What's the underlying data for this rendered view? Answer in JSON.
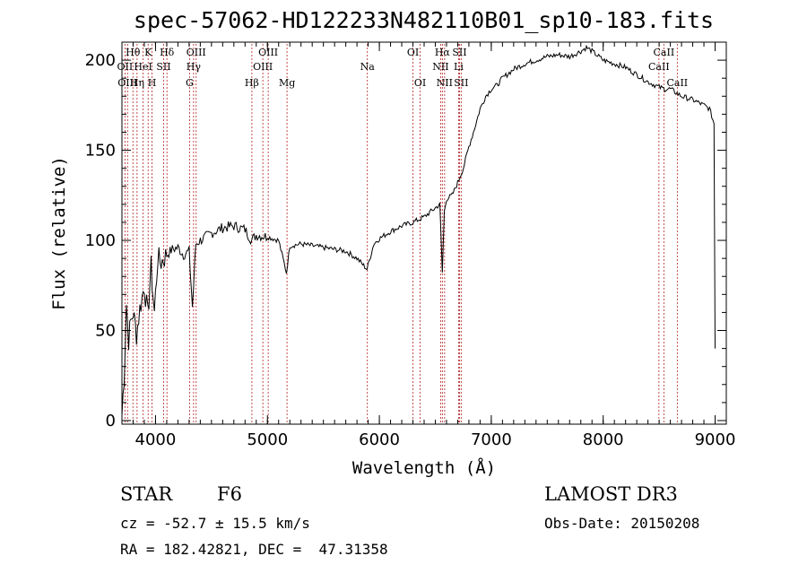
{
  "chart_data": {
    "type": "line",
    "title": "spec-57062-HD122233N482110B01_sp10-183.fits",
    "xlabel": "Wavelength (Å)",
    "ylabel": "Flux (relative)",
    "xlim": [
      3700,
      9100
    ],
    "ylim": [
      -2,
      210
    ],
    "xticks": [
      4000,
      5000,
      6000,
      7000,
      8000,
      9000
    ],
    "yticks": [
      0,
      50,
      100,
      150,
      200
    ],
    "series": [
      {
        "name": "flux",
        "x": [
          3700,
          3720,
          3740,
          3760,
          3780,
          3800,
          3830,
          3860,
          3900,
          3930,
          3960,
          3990,
          4020,
          4050,
          4100,
          4150,
          4200,
          4250,
          4300,
          4330,
          4360,
          4400,
          4450,
          4500,
          4600,
          4700,
          4800,
          4860,
          4900,
          5000,
          5100,
          5170,
          5200,
          5300,
          5400,
          5500,
          5600,
          5700,
          5800,
          5890,
          5950,
          6000,
          6100,
          6200,
          6300,
          6400,
          6500,
          6540,
          6563,
          6580,
          6600,
          6650,
          6700,
          6750,
          6800,
          6850,
          6900,
          6950,
          7000,
          7050,
          7100,
          7200,
          7300,
          7400,
          7500,
          7600,
          7700,
          7800,
          7850,
          7900,
          8000,
          8100,
          8200,
          8300,
          8400,
          8500,
          8550,
          8600,
          8700,
          8800,
          8900,
          8950,
          8990,
          9000
        ],
        "y": [
          3,
          25,
          65,
          45,
          55,
          60,
          48,
          62,
          75,
          58,
          85,
          60,
          90,
          88,
          92,
          95,
          96,
          92,
          94,
          63,
          98,
          100,
          102,
          104,
          107,
          108,
          106,
          100,
          103,
          102,
          100,
          82,
          97,
          98,
          97,
          96,
          95,
          94,
          90,
          84,
          98,
          101,
          105,
          108,
          110,
          113,
          118,
          120,
          82,
          116,
          123,
          125,
          132,
          140,
          152,
          162,
          173,
          180,
          184,
          186,
          190,
          195,
          198,
          200,
          202,
          203,
          202,
          205,
          207,
          205,
          200,
          198,
          196,
          192,
          188,
          185,
          184,
          184,
          180,
          178,
          175,
          173,
          165,
          40
        ]
      }
    ],
    "annotations": [
      {
        "label": "Hθ",
        "x": 3798,
        "row": 1
      },
      {
        "label": "K",
        "x": 3934,
        "row": 1
      },
      {
        "label": "Hδ",
        "x": 4102,
        "row": 1
      },
      {
        "label": "OIII",
        "x": 4363,
        "row": 1
      },
      {
        "label": "OIII",
        "x": 5007,
        "row": 1
      },
      {
        "label": "OI",
        "x": 6300,
        "row": 1
      },
      {
        "label": "Hα",
        "x": 6563,
        "row": 1
      },
      {
        "label": "SII",
        "x": 6716,
        "row": 1
      },
      {
        "label": "CaII",
        "x": 8542,
        "row": 1
      },
      {
        "label": "OII",
        "x": 3727,
        "row": 2
      },
      {
        "label": "HeI",
        "x": 3889,
        "row": 2
      },
      {
        "label": "SII",
        "x": 4072,
        "row": 2
      },
      {
        "label": "Hγ",
        "x": 4340,
        "row": 2
      },
      {
        "label": "OIII",
        "x": 4959,
        "row": 2
      },
      {
        "label": "Na",
        "x": 5893,
        "row": 2
      },
      {
        "label": "NII",
        "x": 6548,
        "row": 2
      },
      {
        "label": "Li",
        "x": 6708,
        "row": 2
      },
      {
        "label": "CaII",
        "x": 8498,
        "row": 2
      },
      {
        "label": "OIII",
        "x": 3750,
        "row": 3
      },
      {
        "label": "Hη",
        "x": 3835,
        "row": 3
      },
      {
        "label": "H",
        "x": 3969,
        "row": 3
      },
      {
        "label": "G",
        "x": 4304,
        "row": 3
      },
      {
        "label": "Hβ",
        "x": 4861,
        "row": 3
      },
      {
        "label": "Mg",
        "x": 5175,
        "row": 3
      },
      {
        "label": "OI",
        "x": 6364,
        "row": 3
      },
      {
        "label": "NII",
        "x": 6583,
        "row": 3
      },
      {
        "label": "SII",
        "x": 6731,
        "row": 3
      },
      {
        "label": "CaII",
        "x": 8662,
        "row": 3
      }
    ]
  },
  "info": {
    "class": "STAR",
    "subclass": "F6",
    "cz": "cz = -52.7 ± 15.5 km/s",
    "coords": "RA = 182.42821, DEC =  47.31358",
    "survey": "LAMOST DR3",
    "obs_date": "Obs-Date: 20150208"
  },
  "colors": {
    "line": "#000000",
    "marker": "#b22222",
    "background": "#ffffff"
  }
}
